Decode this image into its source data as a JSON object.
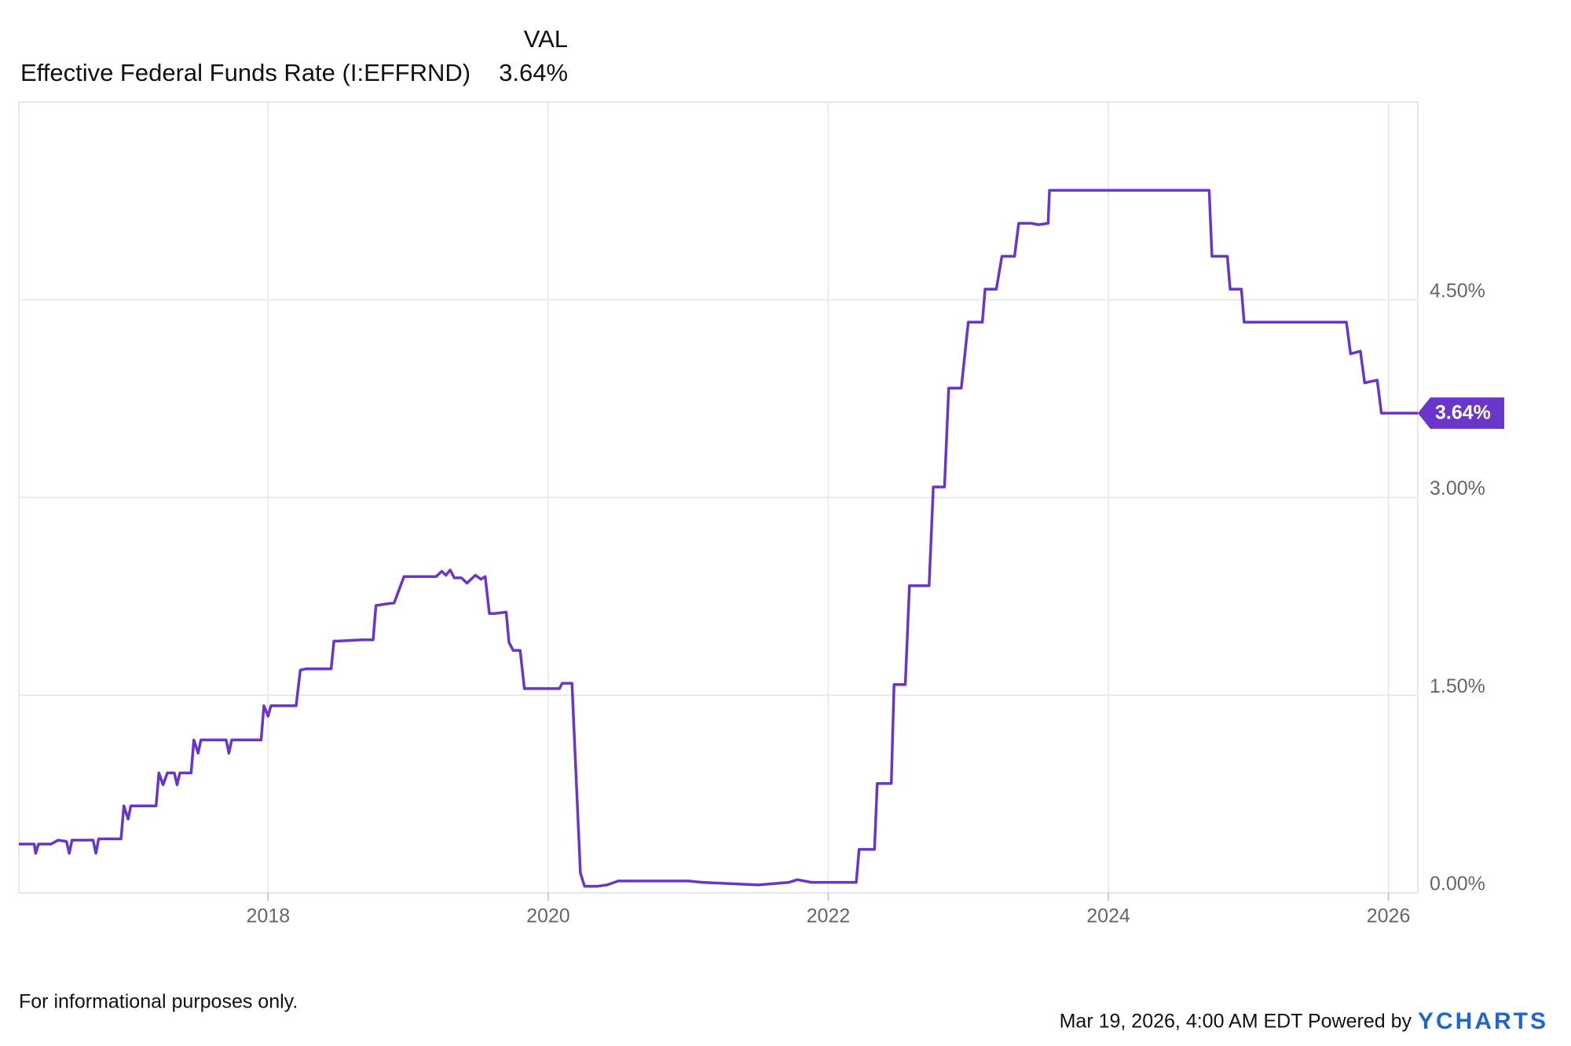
{
  "chart_data": {
    "type": "line",
    "legend_header": "VAL",
    "series": [
      {
        "name": "Effective Federal Funds Rate (I:EFFRND)",
        "color": "#6a35c9",
        "current_value": 3.64,
        "current_label": "3.64%",
        "x": [
          2016.22,
          2016.33,
          2016.34,
          2016.36,
          2016.45,
          2016.5,
          2016.56,
          2016.58,
          2016.6,
          2016.75,
          2016.77,
          2016.79,
          2016.95,
          2016.97,
          2017.0,
          2017.02,
          2017.2,
          2017.22,
          2017.25,
          2017.28,
          2017.33,
          2017.35,
          2017.37,
          2017.45,
          2017.47,
          2017.5,
          2017.52,
          2017.7,
          2017.72,
          2017.74,
          2017.95,
          2017.97,
          2018.0,
          2018.02,
          2018.2,
          2018.23,
          2018.27,
          2018.45,
          2018.47,
          2018.5,
          2018.67,
          2018.75,
          2018.77,
          2018.83,
          2018.9,
          2018.97,
          2019.2,
          2019.24,
          2019.27,
          2019.3,
          2019.33,
          2019.38,
          2019.42,
          2019.48,
          2019.52,
          2019.55,
          2019.58,
          2019.62,
          2019.7,
          2019.72,
          2019.75,
          2019.8,
          2019.83,
          2019.88,
          2020.08,
          2020.1,
          2020.17,
          2020.19,
          2020.23,
          2020.26,
          2020.35,
          2020.42,
          2020.5,
          2021.0,
          2021.1,
          2021.3,
          2021.5,
          2021.72,
          2021.78,
          2021.88,
          2022.2,
          2022.22,
          2022.33,
          2022.35,
          2022.45,
          2022.47,
          2022.55,
          2022.58,
          2022.72,
          2022.75,
          2022.83,
          2022.86,
          2022.95,
          2023.0,
          2023.1,
          2023.12,
          2023.2,
          2023.24,
          2023.33,
          2023.36,
          2023.45,
          2023.5,
          2023.57,
          2023.58,
          2024.72,
          2024.74,
          2024.85,
          2024.87,
          2024.95,
          2024.97,
          2025.7,
          2025.73,
          2025.8,
          2025.83,
          2025.92,
          2025.95,
          2026.21
        ],
        "values": [
          0.37,
          0.37,
          0.3,
          0.37,
          0.37,
          0.4,
          0.39,
          0.3,
          0.4,
          0.4,
          0.3,
          0.41,
          0.41,
          0.66,
          0.56,
          0.66,
          0.66,
          0.91,
          0.82,
          0.91,
          0.91,
          0.82,
          0.91,
          0.91,
          1.16,
          1.06,
          1.16,
          1.16,
          1.06,
          1.16,
          1.16,
          1.42,
          1.34,
          1.42,
          1.42,
          1.69,
          1.7,
          1.7,
          1.91,
          1.91,
          1.92,
          1.92,
          2.18,
          2.19,
          2.2,
          2.4,
          2.4,
          2.44,
          2.41,
          2.45,
          2.39,
          2.39,
          2.35,
          2.41,
          2.38,
          2.4,
          2.12,
          2.12,
          2.13,
          1.9,
          1.84,
          1.84,
          1.55,
          1.55,
          1.55,
          1.59,
          1.59,
          1.1,
          0.15,
          0.05,
          0.05,
          0.06,
          0.09,
          0.09,
          0.08,
          0.07,
          0.06,
          0.08,
          0.1,
          0.08,
          0.08,
          0.33,
          0.33,
          0.83,
          0.83,
          1.58,
          1.58,
          2.33,
          2.33,
          3.08,
          3.08,
          3.83,
          3.83,
          4.33,
          4.33,
          4.58,
          4.58,
          4.83,
          4.83,
          5.08,
          5.08,
          5.07,
          5.08,
          5.33,
          5.33,
          4.83,
          4.83,
          4.58,
          4.58,
          4.33,
          4.33,
          4.09,
          4.11,
          3.87,
          3.89,
          3.64,
          3.64
        ]
      }
    ],
    "xlim": [
      2016.22,
      2026.21
    ],
    "xticks": [
      2018,
      2020,
      2022,
      2024,
      2026
    ],
    "ylim": [
      0,
      6
    ],
    "yticks": [
      {
        "value": 0,
        "label": "0.00%"
      },
      {
        "value": 1.5,
        "label": "1.50%"
      },
      {
        "value": 3,
        "label": "3.00%"
      },
      {
        "value": 4.5,
        "label": "4.50%"
      }
    ],
    "grid": true,
    "footnote": "For informational purposes only.",
    "timestamp": "Mar 19, 2026, 4:00 AM EDT Powered by",
    "brand": "YCHARTS"
  }
}
